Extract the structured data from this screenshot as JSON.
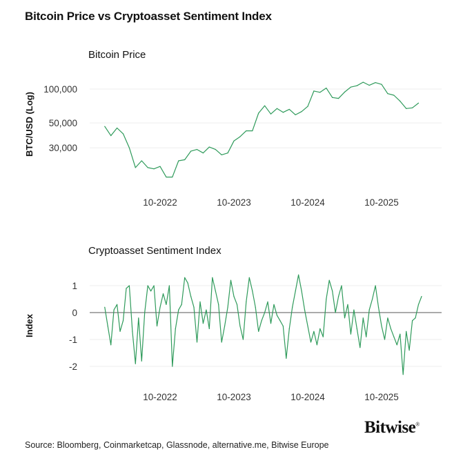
{
  "title": "Bitcoin Price vs Cryptoasset Sentiment Index",
  "source": "Source: Bloomberg, Coinmarketcap, Glassnode, alternative.me, Bitwise Europe",
  "logo_text": "Bitwise",
  "colors": {
    "series": "#2e9a5a",
    "grid": "#eeeeee",
    "zero_line": "#777777",
    "text": "#333333"
  },
  "chart_data": [
    {
      "type": "line",
      "title": "Bitcoin Price",
      "ylabel": "BTC/USD (Log)",
      "yscale": "log",
      "ylim": [
        14000,
        135000
      ],
      "yticks": [
        30000,
        50000,
        100000
      ],
      "ytick_labels": [
        "30,000",
        "50,000",
        "100,000"
      ],
      "xticks": [
        "2022-10",
        "2023-10",
        "2024-10",
        "2025-10"
      ],
      "xtick_labels": [
        "10-2022",
        "10-2023",
        "10-2024",
        "10-2025"
      ],
      "grid": true,
      "x_start": "2022-01",
      "x_step": "month",
      "values": [
        46500,
        38500,
        45000,
        40000,
        30000,
        20000,
        23000,
        20000,
        19500,
        20500,
        16500,
        16500,
        23000,
        23500,
        28000,
        29000,
        27000,
        30500,
        29000,
        26000,
        27000,
        34500,
        37700,
        42500,
        42500,
        61000,
        71000,
        60000,
        67000,
        62000,
        66000,
        59000,
        63000,
        70000,
        96000,
        93500,
        102000,
        84000,
        82500,
        94000,
        104000,
        107000,
        115000,
        108000,
        114000,
        110000,
        91000,
        88000,
        78000,
        67000,
        68000,
        75000
      ]
    },
    {
      "type": "line",
      "title": "Cryptoasset Sentiment Index",
      "ylabel": "Index",
      "ylim": [
        -2.5,
        1.6
      ],
      "yticks": [
        -2,
        -1,
        0,
        1
      ],
      "ytick_labels": [
        "-2",
        "-1",
        "0",
        "1"
      ],
      "xticks": [
        "2022-10",
        "2023-10",
        "2024-10",
        "2025-10"
      ],
      "xtick_labels": [
        "10-2022",
        "10-2023",
        "10-2024",
        "10-2025"
      ],
      "grid": true,
      "x_start": "2022-01",
      "x_step": "half-month",
      "values": [
        0.2,
        -0.5,
        -1.2,
        0.1,
        0.3,
        -0.7,
        -0.3,
        0.9,
        1.0,
        -0.7,
        -1.9,
        -0.2,
        -1.8,
        0.0,
        1.0,
        0.8,
        1.0,
        -0.5,
        0.2,
        0.7,
        0.3,
        1.0,
        -2.0,
        -0.6,
        0.1,
        0.3,
        1.3,
        1.1,
        0.6,
        0.2,
        -1.1,
        0.4,
        -0.4,
        0.1,
        -0.6,
        1.3,
        0.8,
        0.3,
        -1.1,
        -0.5,
        0.2,
        1.2,
        0.6,
        0.3,
        -0.5,
        -1.0,
        0.4,
        1.3,
        0.8,
        0.2,
        -0.7,
        -0.3,
        0.0,
        0.4,
        -0.4,
        0.3,
        -0.1,
        -0.3,
        -0.5,
        -1.7,
        -0.6,
        0.2,
        0.8,
        1.4,
        0.8,
        0.1,
        -0.5,
        -1.1,
        -0.7,
        -1.2,
        -0.6,
        -0.9,
        0.5,
        1.2,
        0.8,
        0.0,
        0.6,
        1.0,
        -0.2,
        0.3,
        -0.8,
        0.1,
        -0.6,
        -1.3,
        -0.2,
        -0.9,
        0.1,
        0.5,
        1.0,
        0.2,
        -0.5,
        -1.0,
        -0.2,
        -0.6,
        -0.9,
        -1.2,
        -0.8,
        -2.3,
        -0.7,
        -1.4,
        -0.3,
        -0.2,
        0.3,
        0.6
      ]
    }
  ]
}
